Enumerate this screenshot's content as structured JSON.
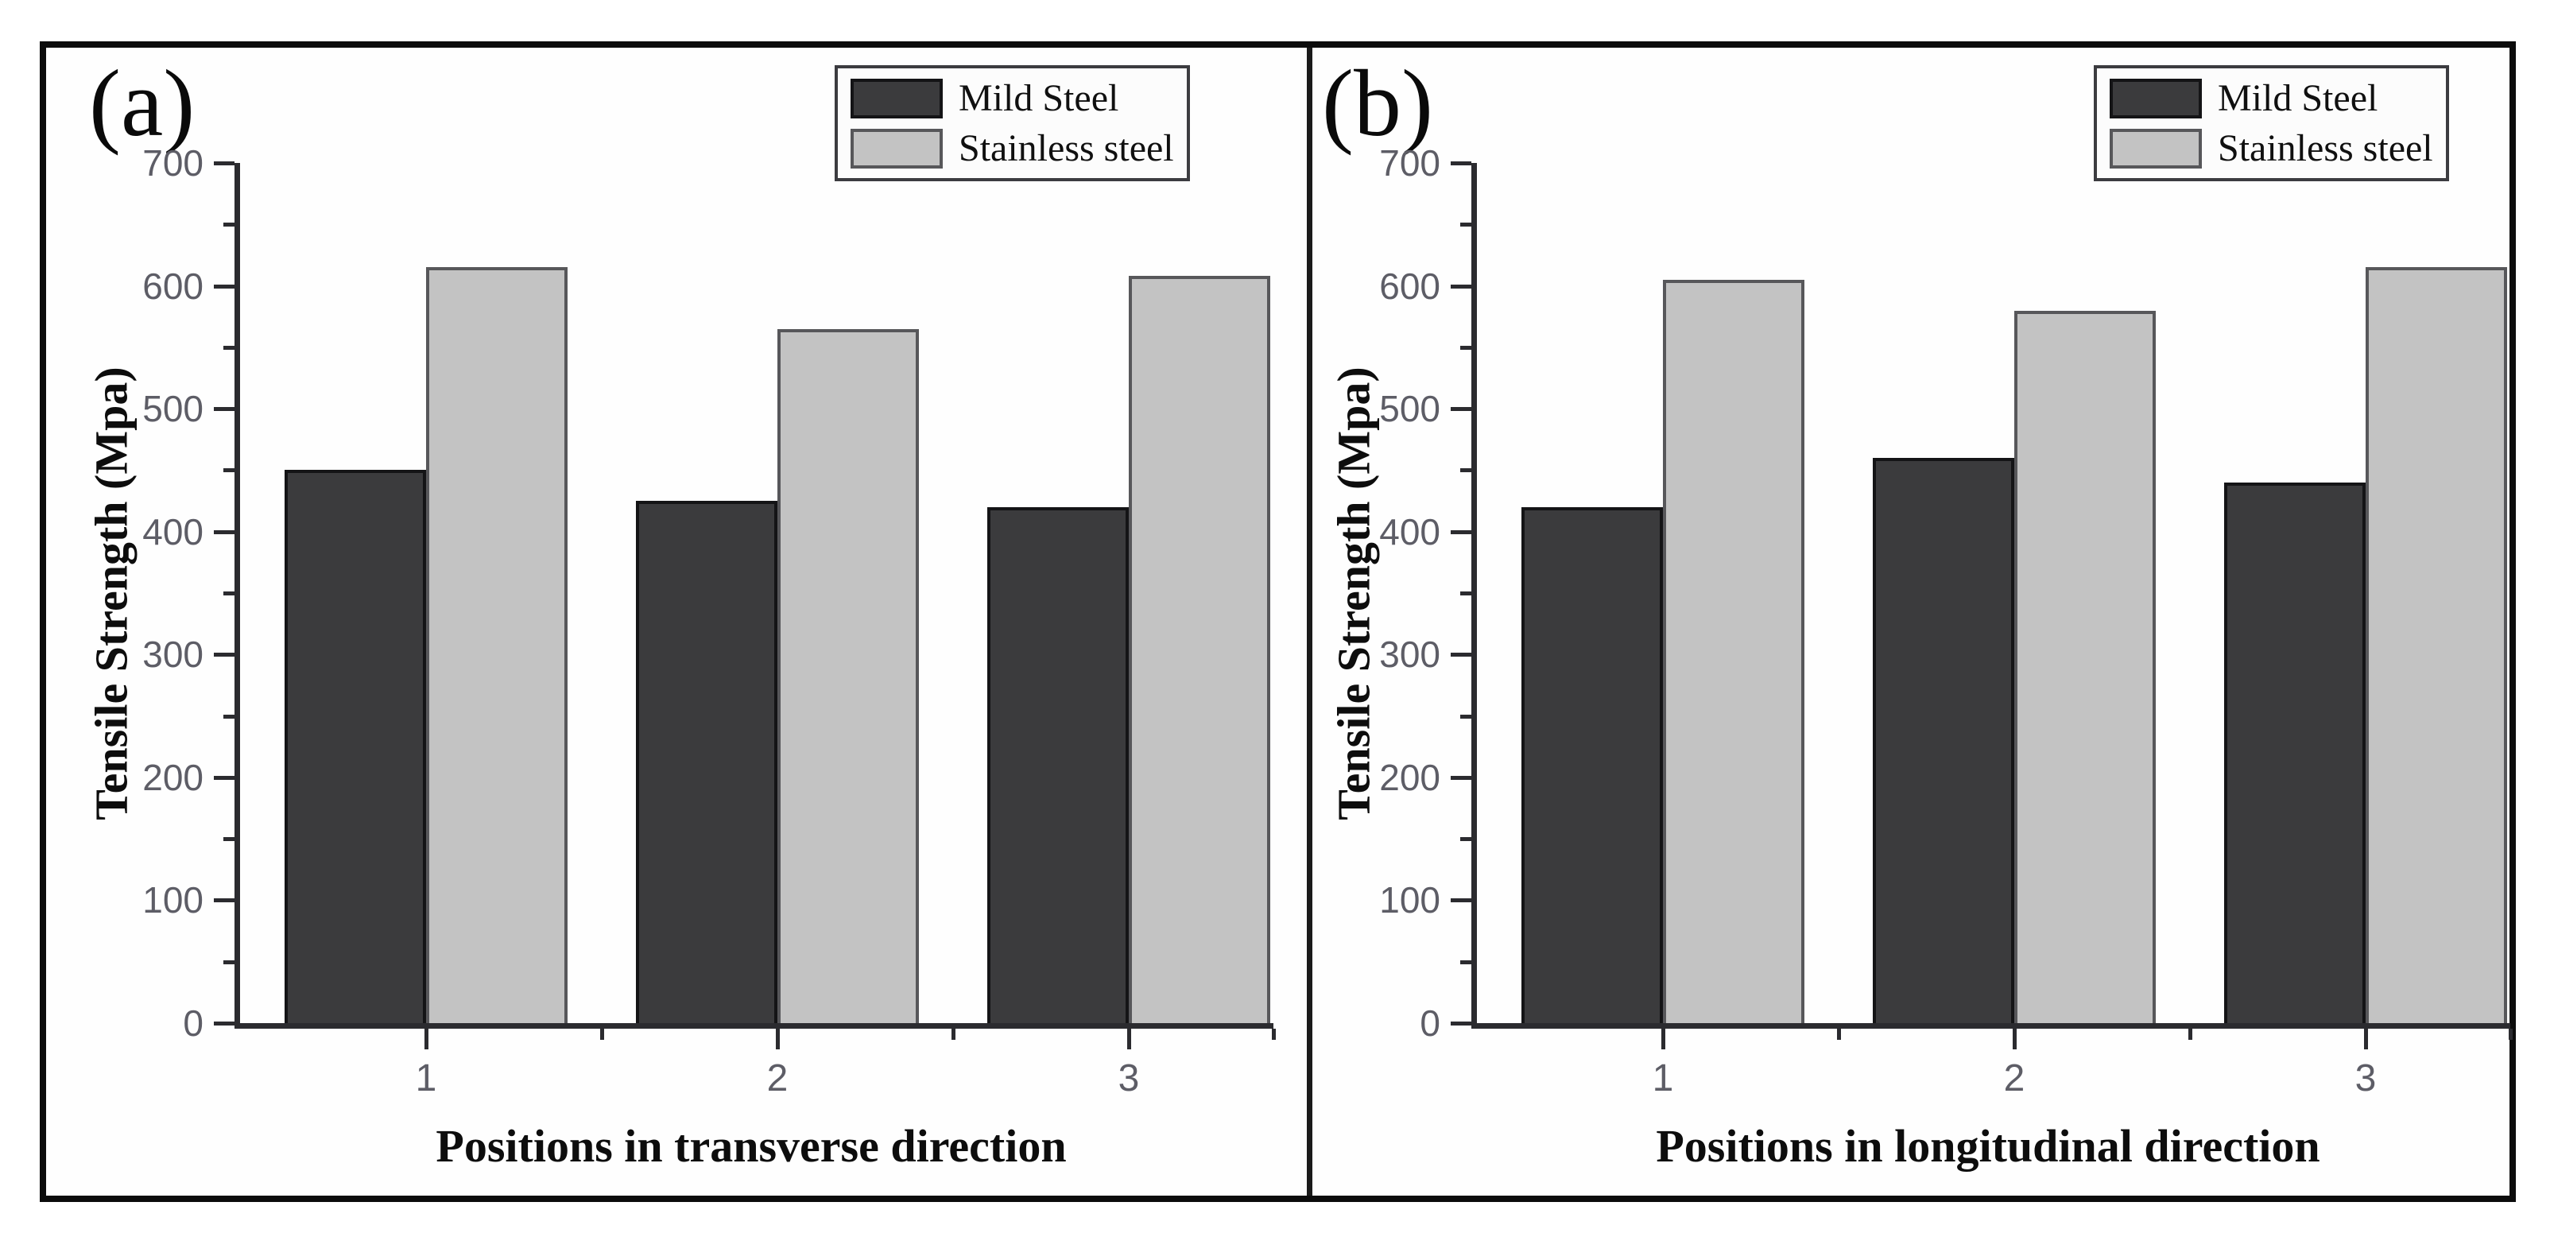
{
  "figure": {
    "border_color": "#0c0c0c",
    "divider_color": "#1a1a1a",
    "background": "#fefefe"
  },
  "chart_data": [
    {
      "type": "bar",
      "letter": "(a)",
      "categories": [
        "1",
        "2",
        "3"
      ],
      "series": [
        {
          "name": "Mild Steel",
          "values": [
            450,
            425,
            420
          ],
          "color": "#3b3b3d",
          "border_color": "#141416"
        },
        {
          "name": "Stainless steel",
          "values": [
            615,
            565,
            608
          ],
          "color": "#c3c3c3",
          "border_color": "#57575a"
        }
      ],
      "xlabel": "Positions in transverse direction",
      "ylabel": "Tensile Strength (Mpa)",
      "ylim": [
        0,
        700
      ],
      "ytick_step": 100,
      "yminor_step": 50,
      "grid": false,
      "legend_position": "top-right"
    },
    {
      "type": "bar",
      "letter": "(b)",
      "categories": [
        "1",
        "2",
        "3"
      ],
      "series": [
        {
          "name": "Mild Steel",
          "values": [
            420,
            460,
            440
          ],
          "color": "#3b3b3d",
          "border_color": "#141416"
        },
        {
          "name": "Stainless steel",
          "values": [
            605,
            580,
            615
          ],
          "color": "#c3c3c3",
          "border_color": "#57575a"
        }
      ],
      "xlabel": "Positions in longitudinal direction",
      "ylabel": "Tensile Strength (Mpa)",
      "ylim": [
        0,
        700
      ],
      "ytick_step": 100,
      "yminor_step": 50,
      "grid": false,
      "legend_position": "top-right"
    }
  ]
}
